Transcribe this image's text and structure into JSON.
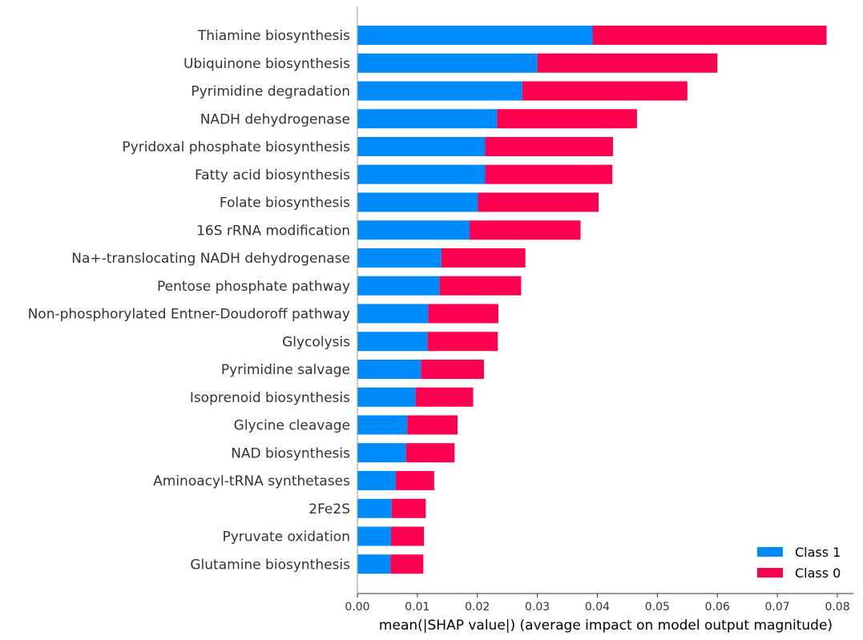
{
  "chart_data": {
    "type": "bar",
    "orientation": "horizontal",
    "stacked": true,
    "categories": [
      "Thiamine biosynthesis",
      "Ubiquinone biosynthesis",
      "Pyrimidine degradation",
      "NADH dehydrogenase",
      "Pyridoxal phosphate biosynthesis",
      "Fatty acid biosynthesis",
      "Folate biosynthesis",
      "16S rRNA modification",
      "Na+-translocating NADH dehydrogenase",
      "Pentose phosphate pathway",
      "Non-phosphorylated Entner-Doudoroff pathway",
      "Glycolysis",
      "Pyrimidine salvage",
      "Isoprenoid biosynthesis",
      "Glycine cleavage",
      "NAD biosynthesis",
      "Aminoacyl-tRNA synthetases",
      "2Fe2S",
      "Pyruvate oxidation",
      "Glutamine biosynthesis"
    ],
    "series": [
      {
        "name": "Class 1",
        "color": "#008bfb",
        "values": [
          0.0392,
          0.03,
          0.0275,
          0.0233,
          0.0213,
          0.0213,
          0.0201,
          0.0187,
          0.014,
          0.0137,
          0.0118,
          0.0117,
          0.0106,
          0.0097,
          0.0083,
          0.0081,
          0.0064,
          0.0057,
          0.0056,
          0.0055
        ]
      },
      {
        "name": "Class 0",
        "color": "#ff0051",
        "values": [
          0.039,
          0.03,
          0.0275,
          0.0233,
          0.0213,
          0.0212,
          0.0201,
          0.0185,
          0.014,
          0.0136,
          0.0117,
          0.0117,
          0.0105,
          0.0096,
          0.0084,
          0.0081,
          0.0064,
          0.0057,
          0.0055,
          0.0055
        ]
      }
    ],
    "xticks": [
      "0.00",
      "0.01",
      "0.02",
      "0.03",
      "0.04",
      "0.05",
      "0.06",
      "0.07",
      "0.08"
    ],
    "xlim": [
      0,
      0.082
    ],
    "xlabel": "mean(|SHAP value|) (average impact on model output magnitude)",
    "ylabel": "",
    "title": "",
    "grid": false,
    "legend": {
      "placement": "bottom-right",
      "entries": [
        "Class 1",
        "Class 0"
      ]
    }
  }
}
